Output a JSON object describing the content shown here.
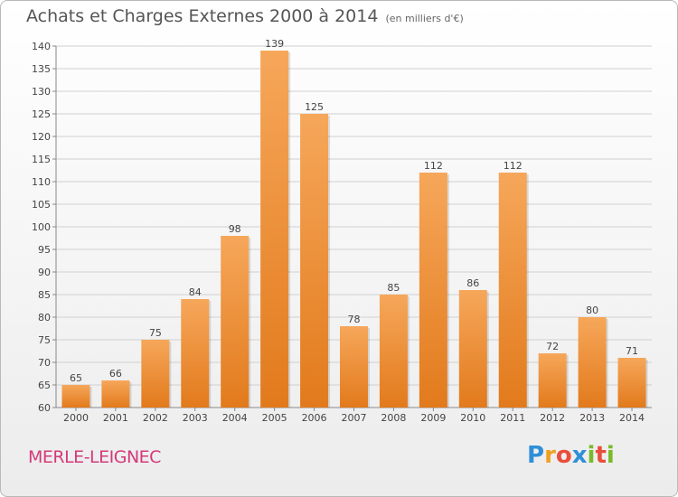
{
  "header": {
    "title": "Achats et Charges Externes 2000 à 2014",
    "unit": "(en milliers d'€)"
  },
  "footer": {
    "commune": "MERLE-LEIGNEC",
    "logo_letters": [
      "P",
      "r",
      "o",
      "x",
      "i",
      "t",
      "i"
    ]
  },
  "colors": {
    "bar_light": "#f6a75a",
    "bar_dark": "#e27a1c",
    "commune": "#d43a7a"
  },
  "chart_data": {
    "type": "bar",
    "title": "Achats et Charges Externes 2000 à 2014",
    "subtitle": "(en milliers d'€)",
    "categories": [
      "2000",
      "2001",
      "2002",
      "2003",
      "2004",
      "2005",
      "2006",
      "2007",
      "2008",
      "2009",
      "2010",
      "2011",
      "2012",
      "2013",
      "2014"
    ],
    "values": [
      65,
      66,
      75,
      84,
      98,
      139,
      125,
      78,
      85,
      112,
      86,
      112,
      72,
      80,
      71
    ],
    "ylim": [
      60,
      140
    ],
    "yticks": [
      60,
      65,
      70,
      75,
      80,
      85,
      90,
      95,
      100,
      105,
      110,
      115,
      120,
      125,
      130,
      135,
      140
    ],
    "grid": true,
    "xlabel": "",
    "ylabel": ""
  }
}
